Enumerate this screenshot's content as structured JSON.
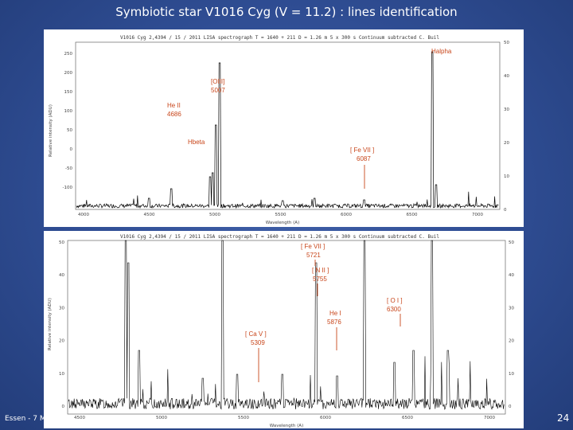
{
  "slide": {
    "title": "Symbiotic star V1016 Cyg (V = 11.2) : lines identification",
    "footer_left": "Essen - 7 M",
    "page_number": "24"
  },
  "top_plot": {
    "header": "V1016 Cyg   2,4394 / 15 / 2011    LISA spectrograph   T = 1640 + 211   D = 1.26 m    5 x 300 s    Continuum subtracted    C. Buil",
    "x_label": "Wavelength (A)",
    "y_label": "Relative intensity (ADU)",
    "x_ticks": [
      "4000",
      "4500",
      "5000",
      "5500",
      "6000",
      "6500",
      "7000"
    ],
    "y_ticks_left": [
      "250",
      "200",
      "150",
      "100",
      "50",
      "0",
      "-50",
      "-100"
    ],
    "y_ticks_right": [
      "50",
      "40",
      "30",
      "20",
      "10",
      "0"
    ],
    "labels": {
      "halpha": "Halpha",
      "oiii": "[OIII]",
      "oiii_wl": "5007",
      "heii": "He II",
      "heii_wl": "4686",
      "hbeta": "Hbeta",
      "fevii": "[ Fe VII ]",
      "fevii_wl": "6087"
    }
  },
  "bottom_plot": {
    "header": "V1016 Cyg   2,4394 / 15 / 2011    LISA spectrograph   T = 1640 + 211   D = 1.26 m    5 x 300 s    Continuum subtracted    C. Buil",
    "x_label": "Wavelength (A)",
    "y_label": "Relative intensity (ADU)",
    "x_ticks": [
      "4500",
      "5000",
      "5500",
      "6000",
      "6500",
      "7000"
    ],
    "y_ticks_left": [
      "50",
      "40",
      "30",
      "20",
      "10",
      "0"
    ],
    "y_ticks_right": [
      "50",
      "40",
      "30",
      "20",
      "10",
      "0"
    ],
    "labels": {
      "fevii": "[ Fe VII ]",
      "fevii_wl": "5721",
      "nii": "[ N II ]",
      "nii_wl": "5755",
      "oi": "[ O I ]",
      "oi_wl": "6300",
      "hei": "He I",
      "hei_wl": "5876",
      "cav": "[ Ca V ]",
      "cav_wl": "5309"
    }
  }
}
